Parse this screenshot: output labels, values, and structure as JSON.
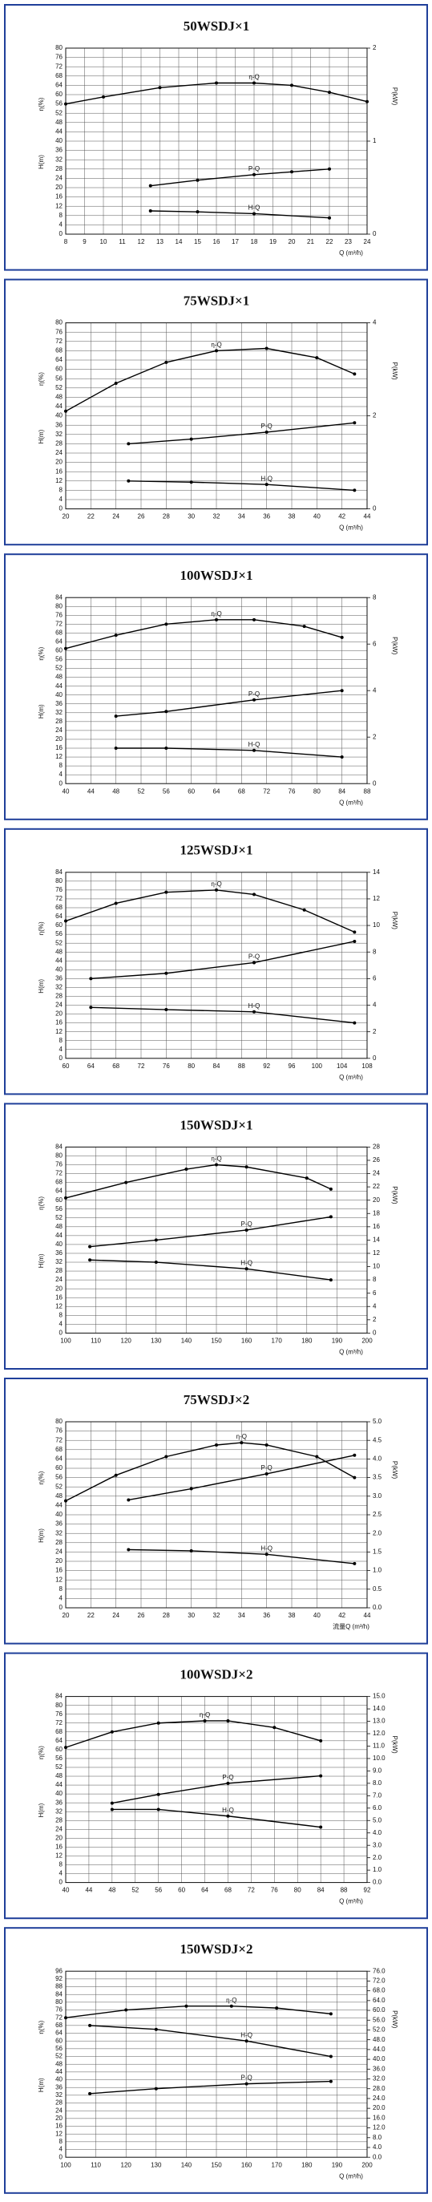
{
  "chart_data": [
    {
      "type": "line",
      "title": "50WSDJ×1",
      "ylabel": "η(%)",
      "ylabel2": "H(m)",
      "y2label": "P(kW)",
      "xlabel": "Q (m³/h)",
      "xlim": [
        8,
        24
      ],
      "xticks": [
        8,
        9,
        10,
        11,
        12,
        13,
        14,
        15,
        16,
        17,
        18,
        19,
        20,
        21,
        22,
        23,
        24
      ],
      "ylim": [
        0,
        80
      ],
      "yticks": [
        0,
        4,
        8,
        12,
        16,
        20,
        24,
        28,
        32,
        36,
        40,
        44,
        48,
        52,
        56,
        60,
        64,
        68,
        72,
        76,
        80
      ],
      "y2lim": [
        0,
        2
      ],
      "y2ticks": [
        0,
        1,
        2
      ],
      "grid": true,
      "series": [
        {
          "name": "η-Q",
          "color": "#000000",
          "x": [
            8,
            10,
            13,
            16,
            18,
            20,
            22,
            24
          ],
          "values": [
            56,
            59,
            63,
            65,
            65,
            64,
            61,
            57
          ]
        },
        {
          "name": "P-Q",
          "color": "#000000",
          "axis": "y2",
          "x": [
            12.5,
            15,
            18,
            20,
            22
          ],
          "values": [
            0.52,
            0.58,
            0.64,
            0.67,
            0.7
          ]
        },
        {
          "name": "H-Q",
          "color": "#000000",
          "x": [
            12.5,
            15,
            18,
            22
          ],
          "values": [
            10,
            9.6,
            8.8,
            7
          ]
        }
      ]
    },
    {
      "type": "line",
      "title": "75WSDJ×1",
      "ylabel": "η(%)",
      "ylabel2": "H(m)",
      "y2label": "P(kW)",
      "xlabel": "Q (m³/h)",
      "xlim": [
        20,
        44
      ],
      "xticks": [
        20,
        22,
        24,
        26,
        28,
        30,
        32,
        34,
        36,
        38,
        40,
        42,
        44
      ],
      "ylim": [
        0,
        80
      ],
      "yticks": [
        0,
        4,
        8,
        12,
        16,
        20,
        24,
        28,
        32,
        36,
        40,
        44,
        48,
        52,
        56,
        60,
        64,
        68,
        72,
        76,
        80
      ],
      "y2lim": [
        0,
        4
      ],
      "y2ticks": [
        0,
        2,
        4
      ],
      "grid": true,
      "series": [
        {
          "name": "η-Q",
          "color": "#000000",
          "x": [
            20,
            24,
            28,
            32,
            36,
            40,
            43
          ],
          "values": [
            42,
            54,
            63,
            68,
            69,
            65,
            58
          ]
        },
        {
          "name": "P-Q",
          "color": "#000000",
          "axis": "y2",
          "x": [
            25,
            30,
            36,
            43
          ],
          "values": [
            1.4,
            1.5,
            1.65,
            1.85
          ]
        },
        {
          "name": "H-Q",
          "color": "#000000",
          "x": [
            25,
            30,
            36,
            43
          ],
          "values": [
            12,
            11.5,
            10.5,
            8
          ]
        }
      ]
    },
    {
      "type": "line",
      "title": "100WSDJ×1",
      "ylabel": "η(%)",
      "ylabel2": "H(m)",
      "y2label": "P(kW)",
      "xlabel": "Q (m³/h)",
      "xlim": [
        40,
        88
      ],
      "xticks": [
        40,
        44,
        48,
        52,
        56,
        60,
        64,
        68,
        72,
        76,
        80,
        84,
        88
      ],
      "ylim": [
        0,
        84
      ],
      "yticks": [
        0,
        4,
        8,
        12,
        16,
        20,
        24,
        28,
        32,
        36,
        40,
        44,
        48,
        52,
        56,
        60,
        64,
        68,
        72,
        76,
        80,
        84
      ],
      "y2lim": [
        0,
        8
      ],
      "y2ticks": [
        0,
        2,
        4,
        6,
        8
      ],
      "grid": true,
      "series": [
        {
          "name": "η-Q",
          "color": "#000000",
          "x": [
            40,
            48,
            56,
            64,
            70,
            78,
            84
          ],
          "values": [
            61,
            67,
            72,
            74,
            74,
            71,
            66
          ]
        },
        {
          "name": "P-Q",
          "color": "#000000",
          "axis": "y2",
          "x": [
            48,
            56,
            70,
            84
          ],
          "values": [
            2.9,
            3.1,
            3.6,
            4
          ]
        },
        {
          "name": "H-Q",
          "color": "#000000",
          "x": [
            48,
            56,
            70,
            84
          ],
          "values": [
            16,
            16,
            15,
            12
          ]
        }
      ]
    },
    {
      "type": "line",
      "title": "125WSDJ×1",
      "ylabel": "η(%)",
      "ylabel2": "H(m)",
      "y2label": "P(kW)",
      "xlabel": "Q (m³/h)",
      "xlim": [
        60,
        108
      ],
      "xticks": [
        60,
        64,
        68,
        72,
        76,
        80,
        84,
        88,
        92,
        96,
        100,
        104,
        108
      ],
      "ylim": [
        0,
        84
      ],
      "yticks": [
        0,
        4,
        8,
        12,
        16,
        20,
        24,
        28,
        32,
        36,
        40,
        44,
        48,
        52,
        56,
        60,
        64,
        68,
        72,
        76,
        80,
        84
      ],
      "y2lim": [
        0,
        14
      ],
      "y2ticks": [
        0,
        2,
        4,
        6,
        8,
        10,
        12,
        14
      ],
      "grid": true,
      "series": [
        {
          "name": "η-Q",
          "color": "#000000",
          "x": [
            60,
            68,
            76,
            84,
            90,
            98,
            106
          ],
          "values": [
            62,
            70,
            75,
            76,
            74,
            67,
            57
          ]
        },
        {
          "name": "P-Q",
          "color": "#000000",
          "axis": "y2",
          "x": [
            64,
            76,
            90,
            106
          ],
          "values": [
            6,
            6.4,
            7.2,
            8.8
          ]
        },
        {
          "name": "H-Q",
          "color": "#000000",
          "x": [
            64,
            76,
            90,
            106
          ],
          "values": [
            23,
            22,
            21,
            16
          ]
        }
      ]
    },
    {
      "type": "line",
      "title": "150WSDJ×1",
      "ylabel": "η(%)",
      "ylabel2": "H(m)",
      "y2label": "P(kW)",
      "xlabel": "Q (m³/h)",
      "xlim": [
        100,
        200
      ],
      "xticks": [
        100,
        110,
        120,
        130,
        140,
        150,
        160,
        170,
        180,
        190,
        200
      ],
      "ylim": [
        0,
        84
      ],
      "yticks": [
        0,
        4,
        8,
        12,
        16,
        20,
        24,
        28,
        32,
        36,
        40,
        44,
        48,
        52,
        56,
        60,
        64,
        68,
        72,
        76,
        80,
        84
      ],
      "y2lim": [
        0,
        28
      ],
      "y2ticks": [
        0,
        2,
        4,
        6,
        8,
        10,
        12,
        14,
        16,
        18,
        20,
        22,
        24,
        26,
        28
      ],
      "grid": true,
      "series": [
        {
          "name": "η-Q",
          "color": "#000000",
          "x": [
            100,
            120,
            140,
            150,
            160,
            180,
            188
          ],
          "values": [
            61,
            68,
            74,
            76,
            75,
            70,
            65
          ]
        },
        {
          "name": "P-Q",
          "color": "#000000",
          "axis": "y2",
          "x": [
            108,
            130,
            160,
            188
          ],
          "values": [
            13,
            14,
            15.5,
            17.5
          ]
        },
        {
          "name": "H-Q",
          "color": "#000000",
          "x": [
            108,
            130,
            160,
            188
          ],
          "values": [
            33,
            32,
            29,
            24
          ]
        }
      ]
    },
    {
      "type": "line",
      "title": "75WSDJ×2",
      "ylabel": "η(%)",
      "ylabel2": "H(m)",
      "y2label": "P(kW)",
      "xlabel": "流量Q (m³/h)",
      "xlim": [
        20,
        44
      ],
      "xticks": [
        20,
        22,
        24,
        26,
        28,
        30,
        32,
        34,
        36,
        38,
        40,
        42,
        44
      ],
      "ylim": [
        0,
        80
      ],
      "yticks": [
        0,
        4,
        8,
        12,
        16,
        20,
        24,
        28,
        32,
        36,
        40,
        44,
        48,
        52,
        56,
        60,
        64,
        68,
        72,
        76,
        80
      ],
      "y2lim": [
        0,
        5
      ],
      "y2ticks": [
        {
          "value": 0,
          "label": "0.0"
        },
        0.5,
        {
          "value": 1,
          "label": "1.0"
        },
        1.5,
        {
          "value": 2,
          "label": "2.0"
        },
        2.5,
        {
          "value": 3,
          "label": "3.0"
        },
        3.5,
        {
          "value": 4,
          "label": "4.0"
        },
        4.5,
        {
          "value": 5,
          "label": "5.0"
        }
      ],
      "grid": true,
      "series": [
        {
          "name": "η-Q",
          "color": "#000000",
          "x": [
            20,
            24,
            28,
            32,
            34,
            36,
            40,
            43
          ],
          "values": [
            46,
            57,
            65,
            70,
            71,
            70,
            65,
            56
          ]
        },
        {
          "name": "P-Q",
          "color": "#000000",
          "axis": "y2",
          "x": [
            25,
            30,
            36,
            43
          ],
          "values": [
            2.9,
            3.2,
            3.6,
            4.1
          ]
        },
        {
          "name": "H-Q",
          "color": "#000000",
          "x": [
            25,
            30,
            36,
            43
          ],
          "values": [
            25,
            24.5,
            23,
            19
          ]
        }
      ]
    },
    {
      "type": "line",
      "title": "100WSDJ×2",
      "ylabel": "η(%)",
      "ylabel2": "H(m)",
      "y2label": "P(kW)",
      "xlabel": "Q (m³/h)",
      "xlim": [
        40,
        92
      ],
      "xticks": [
        40,
        44,
        48,
        52,
        56,
        60,
        64,
        68,
        72,
        76,
        80,
        84,
        88,
        92
      ],
      "ylim": [
        0,
        84
      ],
      "yticks": [
        0,
        4,
        8,
        12,
        16,
        20,
        24,
        28,
        32,
        36,
        40,
        44,
        48,
        52,
        56,
        60,
        64,
        68,
        72,
        76,
        80,
        84
      ],
      "y2lim": [
        0,
        15
      ],
      "y2ticks": [
        {
          "value": 0,
          "label": "0.0"
        },
        {
          "value": 1,
          "label": "1.0"
        },
        {
          "value": 2,
          "label": "2.0"
        },
        {
          "value": 3,
          "label": "3.0"
        },
        {
          "value": 4,
          "label": "4.0"
        },
        {
          "value": 5,
          "label": "5.0"
        },
        {
          "value": 6,
          "label": "6.0"
        },
        {
          "value": 7,
          "label": "7.0"
        },
        {
          "value": 8,
          "label": "8.0"
        },
        {
          "value": 9,
          "label": "9.0"
        },
        {
          "value": 10,
          "label": "10.0"
        },
        {
          "value": 11,
          "label": "11.0"
        },
        {
          "value": 12,
          "label": "12.0"
        },
        {
          "value": 13,
          "label": "13.0"
        },
        {
          "value": 14,
          "label": "14.0"
        },
        {
          "value": 15,
          "label": "15.0"
        }
      ],
      "grid": true,
      "series": [
        {
          "name": "η-Q",
          "color": "#000000",
          "x": [
            40,
            48,
            56,
            64,
            68,
            76,
            84
          ],
          "values": [
            61,
            68,
            72,
            73,
            73,
            70,
            64
          ]
        },
        {
          "name": "P-Q",
          "color": "#000000",
          "axis": "y2",
          "x": [
            48,
            56,
            68,
            84
          ],
          "values": [
            6.4,
            7.1,
            8,
            8.6
          ]
        },
        {
          "name": "H-Q",
          "color": "#000000",
          "x": [
            48,
            56,
            68,
            84
          ],
          "values": [
            33,
            33,
            30,
            25
          ]
        }
      ]
    },
    {
      "type": "line",
      "title": "150WSDJ×2",
      "ylabel": "η(%)",
      "ylabel2": "H(m)",
      "y2label": "P(kW)",
      "xlabel": "Q (m³/h)",
      "xlim": [
        100,
        200
      ],
      "xticks": [
        100,
        110,
        120,
        130,
        140,
        150,
        160,
        170,
        180,
        190,
        200
      ],
      "ylim": [
        0,
        96
      ],
      "yticks": [
        0,
        4,
        8,
        12,
        16,
        20,
        24,
        28,
        32,
        36,
        40,
        44,
        48,
        52,
        56,
        60,
        64,
        68,
        72,
        76,
        80,
        84,
        88,
        92,
        96
      ],
      "y2lim": [
        0,
        76
      ],
      "y2ticks": [
        {
          "value": 0,
          "label": "0.0"
        },
        {
          "value": 4,
          "label": "4.0"
        },
        {
          "value": 8,
          "label": "8.0"
        },
        {
          "value": 12,
          "label": "12.0"
        },
        {
          "value": 16,
          "label": "16.0"
        },
        {
          "value": 20,
          "label": "20.0"
        },
        {
          "value": 24,
          "label": "24.0"
        },
        {
          "value": 28,
          "label": "28.0"
        },
        {
          "value": 32,
          "label": "32.0"
        },
        {
          "value": 36,
          "label": "36.0"
        },
        {
          "value": 40,
          "label": "40.0"
        },
        {
          "value": 44,
          "label": "44.0"
        },
        {
          "value": 48,
          "label": "48.0"
        },
        {
          "value": 52,
          "label": "52.0"
        },
        {
          "value": 56,
          "label": "56.0"
        },
        {
          "value": 60,
          "label": "60.0"
        },
        {
          "value": 64,
          "label": "64.0"
        },
        {
          "value": 68,
          "label": "68.0"
        },
        {
          "value": 72,
          "label": "72.0"
        },
        {
          "value": 76,
          "label": "76.0"
        }
      ],
      "grid": true,
      "series": [
        {
          "name": "η-Q",
          "color": "#000000",
          "x": [
            100,
            120,
            140,
            155,
            170,
            188
          ],
          "values": [
            72,
            76,
            78,
            78,
            77,
            74
          ]
        },
        {
          "name": "P-Q",
          "color": "#000000",
          "axis": "y2",
          "x": [
            108,
            130,
            160,
            188
          ],
          "values": [
            26,
            28,
            30,
            31
          ]
        },
        {
          "name": "H-Q",
          "color": "#000000",
          "x": [
            108,
            130,
            160,
            188
          ],
          "values": [
            68,
            66,
            60,
            52
          ]
        }
      ]
    }
  ]
}
